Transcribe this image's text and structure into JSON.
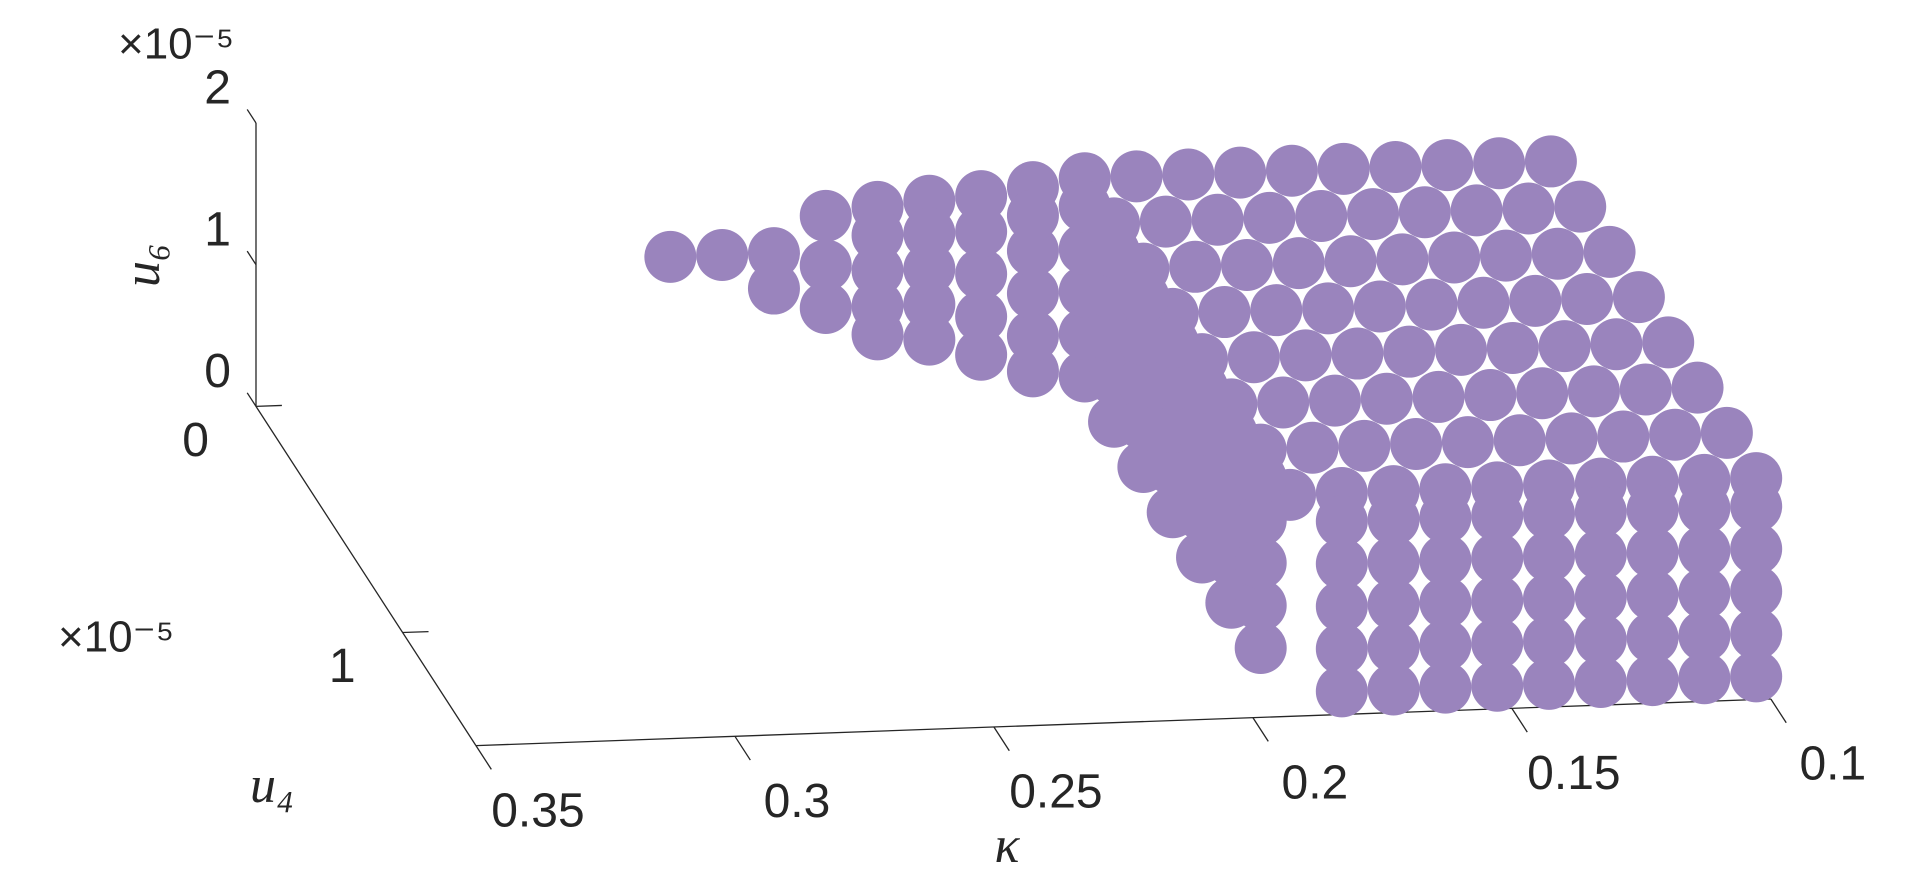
{
  "chart_data": {
    "type": "scatter3d",
    "x_label": "κ",
    "y_label": "u₄",
    "z_label": "u₆",
    "y_exponent": "×10⁻⁵",
    "z_exponent": "×10⁻⁵",
    "color": "#9a84bd",
    "x_dir": "reverse",
    "xlim": [
      0.1,
      0.35
    ],
    "ylim": [
      0,
      1.5
    ],
    "zlim": [
      0,
      2
    ],
    "xticks": [
      0.1,
      0.15,
      0.2,
      0.25,
      0.3,
      0.35
    ],
    "yticks": [
      0,
      1
    ],
    "zticks": [
      0,
      1,
      2
    ],
    "x": [
      0.1,
      0.11,
      0.12,
      0.13,
      0.14,
      0.15,
      0.16,
      0.17,
      0.18,
      0.19,
      0.1,
      0.11,
      0.12,
      0.13,
      0.14,
      0.15,
      0.16,
      0.17,
      0.18,
      0.19,
      0.1,
      0.11,
      0.12,
      0.13,
      0.14,
      0.15,
      0.16,
      0.17,
      0.18,
      0.19,
      0.1,
      0.11,
      0.12,
      0.13,
      0.14,
      0.15,
      0.16,
      0.17,
      0.18,
      0.19,
      0.1,
      0.11,
      0.12,
      0.13,
      0.14,
      0.15,
      0.16,
      0.17,
      0.18,
      0.19,
      0.1,
      0.11,
      0.12,
      0.13,
      0.14,
      0.15,
      0.16,
      0.17,
      0.18,
      0.19,
      0.1,
      0.11,
      0.12,
      0.13,
      0.14,
      0.15,
      0.16,
      0.17,
      0.18,
      0.19,
      0.1,
      0.11,
      0.12,
      0.13,
      0.14,
      0.15,
      0.16,
      0.17,
      0.18,
      0.19,
      0.1,
      0.11,
      0.12,
      0.13,
      0.14,
      0.15,
      0.16,
      0.17,
      0.18,
      0.1,
      0.11,
      0.12,
      0.13,
      0.14,
      0.15,
      0.16,
      0.17,
      0.18,
      0.1,
      0.11,
      0.12,
      0.13,
      0.14,
      0.15,
      0.16,
      0.17,
      0.18,
      0.1,
      0.11,
      0.12,
      0.13,
      0.14,
      0.15,
      0.16,
      0.17,
      0.18,
      0.1,
      0.11,
      0.12,
      0.13,
      0.14,
      0.15,
      0.16,
      0.17,
      0.18,
      0.19,
      0.19,
      0.19,
      0.19,
      0.19,
      0.19,
      0.19,
      0.19,
      0.19,
      0.19,
      0.19,
      0.19,
      0.19,
      0.19,
      0.19,
      0.19,
      0.19,
      0.19,
      0.19,
      0.19,
      0.19,
      0.19,
      0.19,
      0.19,
      0.19,
      0.19,
      0.19,
      0.19,
      0.19,
      0.19,
      0.19,
      0.19,
      0.19,
      0.19,
      0.19,
      0.27,
      0.26,
      0.25,
      0.25,
      0.24,
      0.24,
      0.23,
      0.23,
      0.22,
      0.22,
      0.21,
      0.21,
      0.2,
      0.2,
      0.24,
      0.23,
      0.23,
      0.23,
      0.22,
      0.22,
      0.22,
      0.21,
      0.21,
      0.21,
      0.2,
      0.2,
      0.2,
      0.2
    ],
    "y": [
      0,
      0,
      0,
      0,
      0,
      0,
      0,
      0,
      0,
      0,
      0.2,
      0.2,
      0.2,
      0.2,
      0.2,
      0.2,
      0.2,
      0.2,
      0.2,
      0.2,
      0.4,
      0.4,
      0.4,
      0.4,
      0.4,
      0.4,
      0.4,
      0.4,
      0.4,
      0.4,
      0.6,
      0.6,
      0.6,
      0.6,
      0.6,
      0.6,
      0.6,
      0.6,
      0.6,
      0.6,
      0.8,
      0.8,
      0.8,
      0.8,
      0.8,
      0.8,
      0.8,
      0.8,
      0.8,
      0.8,
      1,
      1,
      1,
      1,
      1,
      1,
      1,
      1,
      1,
      1,
      1.2,
      1.2,
      1.2,
      1.2,
      1.2,
      1.2,
      1.2,
      1.2,
      1.2,
      1.2,
      1.4,
      1.4,
      1.4,
      1.4,
      1.4,
      1.4,
      1.4,
      1.4,
      1.4,
      1.4,
      1.4,
      1.4,
      1.4,
      1.4,
      1.4,
      1.4,
      1.4,
      1.4,
      1.4,
      1.4,
      1.4,
      1.4,
      1.4,
      1.4,
      1.4,
      1.4,
      1.4,
      1.4,
      1.4,
      1.4,
      1.4,
      1.4,
      1.4,
      1.4,
      1.4,
      1.4,
      1.4,
      1.4,
      1.4,
      1.4,
      1.4,
      1.4,
      1.4,
      1.4,
      1.4,
      1.4,
      1.4,
      1.4,
      1.4,
      1.4,
      1.4,
      1.4,
      1.4,
      1.4,
      1.4,
      0,
      0,
      0,
      0,
      0,
      0.2,
      0.2,
      0.2,
      0.2,
      0.2,
      0.4,
      0.4,
      0.4,
      0.4,
      0.4,
      0.6,
      0.6,
      0.6,
      0.6,
      0.6,
      0.8,
      0.8,
      0.8,
      0.8,
      0.8,
      1,
      1,
      1,
      1,
      1,
      1.2,
      1.2,
      1.2,
      1.2,
      1.2,
      0,
      0,
      0,
      0,
      0,
      0,
      0,
      0,
      0,
      0,
      0,
      0,
      0,
      0,
      0,
      0,
      0,
      0,
      0,
      0,
      0,
      0,
      0,
      0,
      0,
      0,
      0,
      0
    ],
    "z": [
      1.4,
      1.4,
      1.4,
      1.4,
      1.4,
      1.4,
      1.4,
      1.4,
      1.4,
      1.4,
      1.4,
      1.4,
      1.4,
      1.4,
      1.4,
      1.4,
      1.4,
      1.4,
      1.4,
      1.4,
      1.4,
      1.4,
      1.4,
      1.4,
      1.4,
      1.4,
      1.4,
      1.4,
      1.4,
      1.4,
      1.4,
      1.4,
      1.4,
      1.4,
      1.4,
      1.4,
      1.4,
      1.4,
      1.4,
      1.4,
      1.4,
      1.4,
      1.4,
      1.4,
      1.4,
      1.4,
      1.4,
      1.4,
      1.4,
      1.4,
      1.4,
      1.4,
      1.4,
      1.4,
      1.4,
      1.4,
      1.4,
      1.4,
      1.4,
      1.4,
      1.4,
      1.4,
      1.4,
      1.4,
      1.4,
      1.4,
      1.4,
      1.4,
      1.4,
      1.4,
      1.4,
      1.4,
      1.4,
      1.4,
      1.4,
      1.4,
      1.4,
      1.4,
      1.4,
      1.4,
      0,
      0,
      0,
      0,
      0,
      0,
      0,
      0,
      0,
      0.3,
      0.3,
      0.3,
      0.3,
      0.3,
      0.3,
      0.3,
      0.3,
      0.3,
      0.6,
      0.6,
      0.6,
      0.6,
      0.6,
      0.6,
      0.6,
      0.6,
      0.6,
      0.9,
      0.9,
      0.9,
      0.9,
      0.9,
      0.9,
      0.9,
      0.9,
      0.9,
      1.2,
      1.2,
      1.2,
      1.2,
      1.2,
      1.2,
      1.2,
      1.2,
      1.2,
      0,
      0.3,
      0.6,
      0.9,
      1.2,
      0,
      0.3,
      0.6,
      0.9,
      1.2,
      0,
      0.3,
      0.6,
      0.9,
      1.2,
      0,
      0.3,
      0.6,
      0.9,
      1.2,
      0,
      0.3,
      0.6,
      0.9,
      1.2,
      0,
      0.3,
      0.6,
      0.9,
      1.2,
      0,
      0.3,
      0.6,
      0.9,
      1.2,
      0.95,
      0.95,
      0.95,
      0.7,
      1.2,
      0.55,
      1.25,
      0.35,
      1.28,
      0.3,
      1.3,
      0.18,
      1.35,
      0.05,
      0.85,
      0.55,
      0.8,
      1.05,
      0.55,
      0.8,
      1.05,
      0.45,
      0.75,
      1.05,
      0.3,
      0.6,
      0.9,
      1.15
    ]
  }
}
